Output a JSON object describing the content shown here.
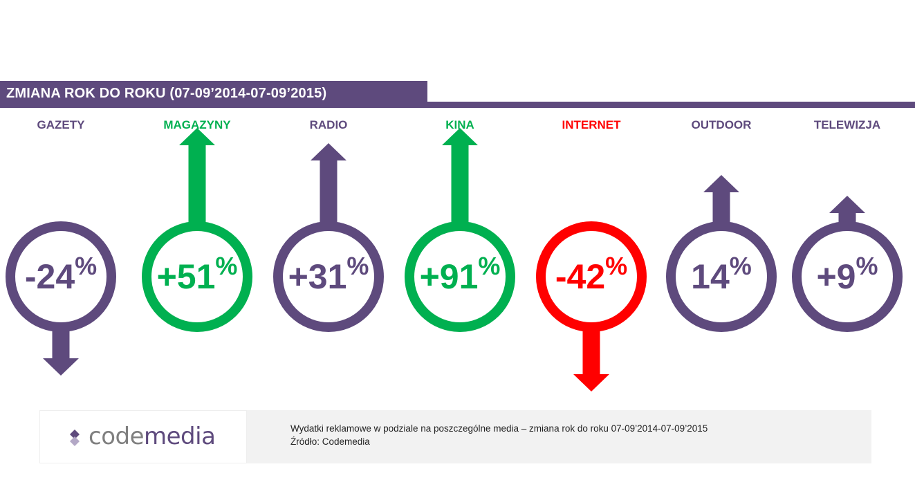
{
  "header": {
    "title": "ZMIANA ROK DO ROKU (07-09’2014-07-09’2015)"
  },
  "colors": {
    "neutral": "#5e4a7d",
    "positive": "#00b050",
    "negative": "#ff0000",
    "footer_bg": "#f2f2f2"
  },
  "chart_data": {
    "type": "bar",
    "categories": [
      "GAZETY",
      "MAGAZYNY",
      "RADIO",
      "KINA",
      "INTERNET",
      "OUTDOOR",
      "TELEWIZJA"
    ],
    "values": [
      -24,
      51,
      31,
      91,
      -42,
      14,
      9
    ],
    "labels": [
      "-24",
      "+51",
      "+31",
      "+91",
      "-42",
      "14",
      "+9"
    ],
    "unit": "%",
    "highlight": [
      "neutral",
      "positive",
      "neutral",
      "positive",
      "negative",
      "neutral",
      "neutral"
    ]
  },
  "footer": {
    "logo_code": "code",
    "logo_media": "media",
    "caption": "Wydatki reklamowe w podziale na poszczególne media – zmiana rok do roku 07-09’2014-07-09’2015",
    "source": "Źródło: Codemedia"
  }
}
